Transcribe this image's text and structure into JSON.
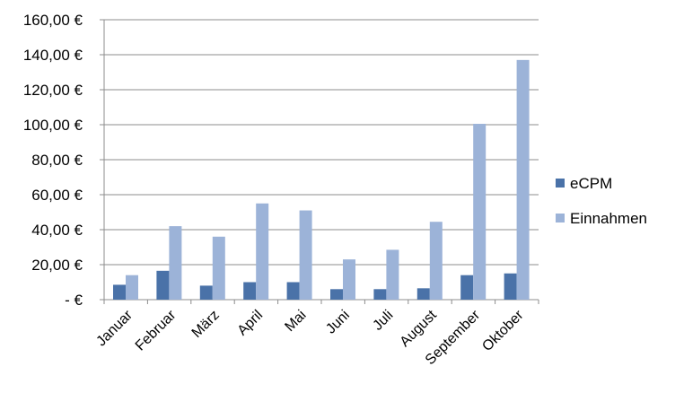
{
  "chart_data": {
    "type": "bar",
    "title": "",
    "xlabel": "",
    "ylabel": "",
    "categories": [
      "Januar",
      "Februar",
      "März",
      "April",
      "Mai",
      "Juni",
      "Juli",
      "August",
      "September",
      "Oktober"
    ],
    "series": [
      {
        "name": "eCPM",
        "color": "#4a72a8",
        "values": [
          8.5,
          16.5,
          8.0,
          10.0,
          10.0,
          6.0,
          6.0,
          6.5,
          14.0,
          15.0
        ]
      },
      {
        "name": "Einnahmen",
        "color": "#9cb3d8",
        "values": [
          14.0,
          42.0,
          36.0,
          55.0,
          51.0,
          23.0,
          28.5,
          44.5,
          100.5,
          137.0
        ]
      }
    ],
    "ylim": [
      0,
      160
    ],
    "y_ticks": [
      0,
      20,
      40,
      60,
      80,
      100,
      120,
      140,
      160
    ],
    "y_tick_labels": [
      "-   €",
      "20,00 €",
      "40,00 €",
      "60,00 €",
      "80,00 €",
      "100,00 €",
      "120,00 €",
      "140,00 €",
      "160,00 €"
    ],
    "grid": "horizontal",
    "legend_position": "right"
  }
}
